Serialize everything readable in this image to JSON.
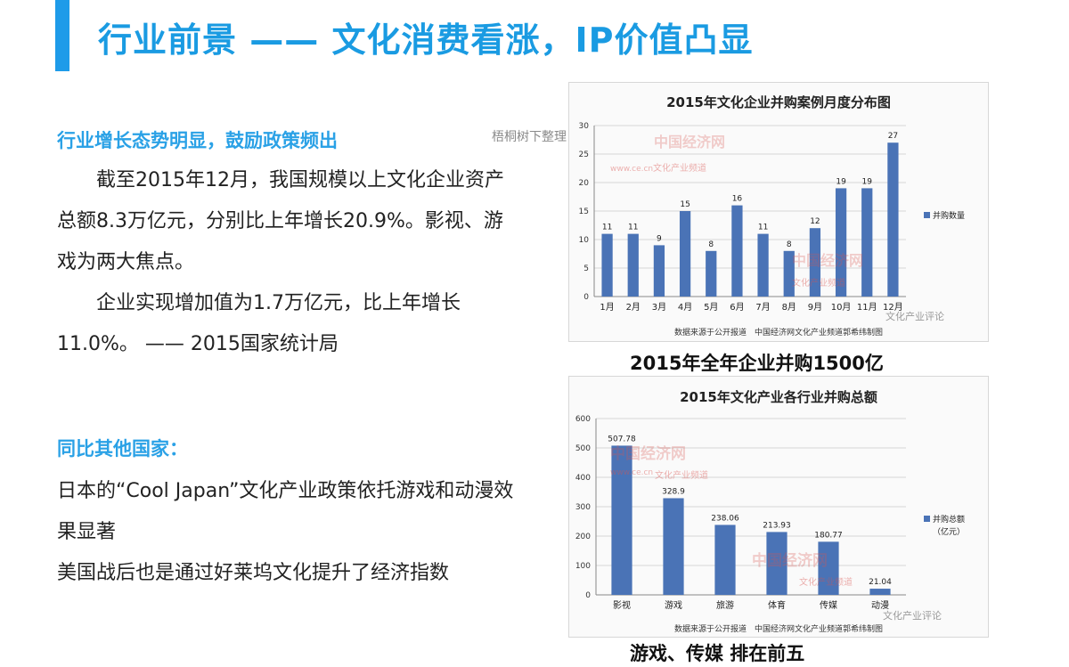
{
  "slide": {
    "title": "行业前景 —— 文化消费看涨，IP价值凸显"
  },
  "left": {
    "heading1": "行业增长态势明显，鼓励政策频出",
    "paragraph1": "截至2015年12月，我国规模以上文化企业资产总额8.3万亿元，分别比上年增长20.9%。影视、游戏为两大焦点。",
    "paragraph2": "企业实现增加值为1.7万亿元，比上年增长11.0%。 —— 2015国家统计局",
    "heading2": "同比其他国家：",
    "paragraph3": "日本的“Cool Japan”文化产业政策依托游戏和动漫效果显著",
    "paragraph4": "美国战后也是通过好莱坞文化提升了经济指数"
  },
  "note": "梧桐树下整理",
  "chart1": {
    "caption": "2015年全年企业并购1500亿",
    "source": "数据来源于公开报道　中国经济网文化产业频道郭希纬制图",
    "watermark": "中国经济网",
    "watermark_sub": "文化产业频道",
    "watermark_url": "www.ce.cn",
    "watermark_logo": "文化产业评论"
  },
  "chart2": {
    "caption": "游戏、传媒 排在前五",
    "source": "数据来源于公开报道　中国经济网文化产业频道郭希纬制图",
    "watermark": "中国经济网",
    "watermark_sub": "文化产业频道",
    "watermark_url": "www.ce.cn",
    "watermark_logo": "文化产业评论"
  },
  "colors": {
    "accent": "#1e9be9",
    "heading": "#2aa1e6",
    "bar": "#4a73b6",
    "watermark": "#d9534f"
  },
  "chart_data": [
    {
      "type": "bar",
      "title": "2015年文化企业并购案例月度分布图",
      "categories": [
        "1月",
        "2月",
        "3月",
        "4月",
        "5月",
        "6月",
        "7月",
        "8月",
        "9月",
        "10月",
        "11月",
        "12月"
      ],
      "series": [
        {
          "name": "并购数量",
          "values": [
            11,
            11,
            9,
            15,
            8,
            16,
            11,
            8,
            12,
            19,
            19,
            27
          ]
        }
      ],
      "yticks": [
        0,
        5,
        10,
        15,
        20,
        25,
        30
      ],
      "ylim": [
        0,
        30
      ],
      "grid": true,
      "legend": "right"
    },
    {
      "type": "bar",
      "title": "2015年文化产业各行业并购总额",
      "categories": [
        "影视",
        "游戏",
        "旅游",
        "体育",
        "传媒",
        "动漫"
      ],
      "series": [
        {
          "name": "并购总额（亿元）",
          "values": [
            507.78,
            328.9,
            238.06,
            213.93,
            180.77,
            21.04
          ]
        }
      ],
      "yticks": [
        0,
        100,
        200,
        300,
        400,
        500,
        600
      ],
      "ylim": [
        0,
        600
      ],
      "grid": true,
      "legend": "right"
    }
  ]
}
